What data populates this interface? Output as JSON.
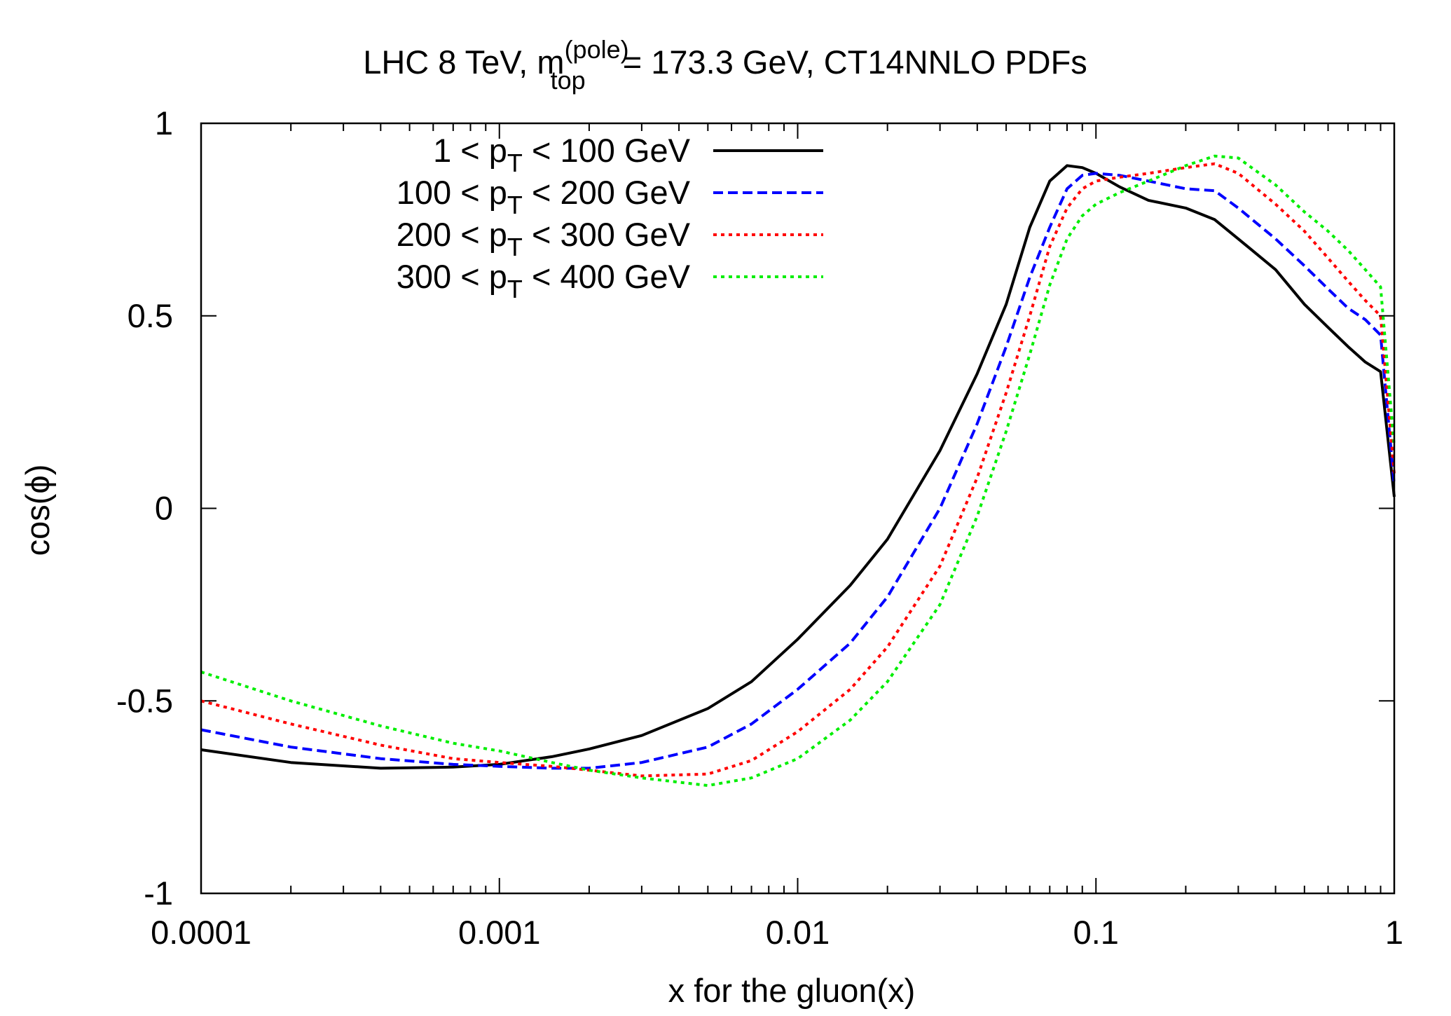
{
  "chart_data": {
    "type": "line",
    "title": {
      "prefix": "LHC 8 TeV, m",
      "superscript": "(pole)",
      "subscript": "top",
      "suffix": " = 173.3 GeV, CT14NNLO PDFs"
    },
    "xlabel": "x for the gluon(x)",
    "ylabel": "cos(ϕ)",
    "xscale": "log",
    "xlim": [
      0.0001,
      1
    ],
    "ylim": [
      -1,
      1
    ],
    "xticks": [
      {
        "value": 0.0001,
        "label": "0.0001"
      },
      {
        "value": 0.001,
        "label": "0.001"
      },
      {
        "value": 0.01,
        "label": "0.01"
      },
      {
        "value": 0.1,
        "label": "0.1"
      },
      {
        "value": 1,
        "label": "1"
      }
    ],
    "yticks": [
      {
        "value": 1,
        "label": "1"
      },
      {
        "value": 0.5,
        "label": "0.5"
      },
      {
        "value": 0,
        "label": "0"
      },
      {
        "value": -0.5,
        "label": "-0.5"
      },
      {
        "value": -1,
        "label": "-1"
      }
    ],
    "grid": false,
    "legend_position": "top-left",
    "series": [
      {
        "name": "1 < pT < 100 GeV",
        "legend": {
          "pre": "1 < p",
          "sub": "T",
          "post": " < 100 GeV"
        },
        "color": "#000000",
        "dash": "solid",
        "points": [
          [
            0.0001,
            -0.627
          ],
          [
            0.0002,
            -0.66
          ],
          [
            0.0004,
            -0.675
          ],
          [
            0.0007,
            -0.672
          ],
          [
            0.001,
            -0.665
          ],
          [
            0.0015,
            -0.645
          ],
          [
            0.002,
            -0.625
          ],
          [
            0.003,
            -0.59
          ],
          [
            0.005,
            -0.52
          ],
          [
            0.007,
            -0.45
          ],
          [
            0.01,
            -0.34
          ],
          [
            0.015,
            -0.2
          ],
          [
            0.02,
            -0.08
          ],
          [
            0.03,
            0.15
          ],
          [
            0.04,
            0.35
          ],
          [
            0.05,
            0.53
          ],
          [
            0.06,
            0.73
          ],
          [
            0.07,
            0.85
          ],
          [
            0.08,
            0.89
          ],
          [
            0.09,
            0.885
          ],
          [
            0.1,
            0.87
          ],
          [
            0.12,
            0.835
          ],
          [
            0.15,
            0.8
          ],
          [
            0.2,
            0.78
          ],
          [
            0.25,
            0.75
          ],
          [
            0.3,
            0.7
          ],
          [
            0.4,
            0.62
          ],
          [
            0.5,
            0.53
          ],
          [
            0.6,
            0.47
          ],
          [
            0.7,
            0.42
          ],
          [
            0.8,
            0.38
          ],
          [
            0.9,
            0.355
          ],
          [
            1.0,
            0.03
          ]
        ]
      },
      {
        "name": "100 < pT < 200 GeV",
        "legend": {
          "pre": "100 < p",
          "sub": "T",
          "post": " < 200 GeV"
        },
        "color": "#0000ff",
        "dash": "dashed",
        "points": [
          [
            0.0001,
            -0.575
          ],
          [
            0.0002,
            -0.62
          ],
          [
            0.0004,
            -0.65
          ],
          [
            0.0007,
            -0.665
          ],
          [
            0.001,
            -0.67
          ],
          [
            0.0015,
            -0.675
          ],
          [
            0.002,
            -0.675
          ],
          [
            0.003,
            -0.66
          ],
          [
            0.005,
            -0.62
          ],
          [
            0.007,
            -0.56
          ],
          [
            0.01,
            -0.47
          ],
          [
            0.015,
            -0.35
          ],
          [
            0.02,
            -0.23
          ],
          [
            0.03,
            0.0
          ],
          [
            0.04,
            0.22
          ],
          [
            0.05,
            0.42
          ],
          [
            0.06,
            0.6
          ],
          [
            0.07,
            0.73
          ],
          [
            0.08,
            0.83
          ],
          [
            0.09,
            0.865
          ],
          [
            0.1,
            0.87
          ],
          [
            0.12,
            0.865
          ],
          [
            0.15,
            0.85
          ],
          [
            0.2,
            0.83
          ],
          [
            0.25,
            0.825
          ],
          [
            0.3,
            0.78
          ],
          [
            0.4,
            0.7
          ],
          [
            0.5,
            0.63
          ],
          [
            0.6,
            0.57
          ],
          [
            0.7,
            0.52
          ],
          [
            0.8,
            0.49
          ],
          [
            0.9,
            0.45
          ],
          [
            1.0,
            0.06
          ]
        ]
      },
      {
        "name": "200 < pT < 300 GeV",
        "legend": {
          "pre": "200 < p",
          "sub": "T",
          "post": " < 300 GeV"
        },
        "color": "#ff0000",
        "dash": "dotted",
        "points": [
          [
            0.0001,
            -0.5
          ],
          [
            0.0002,
            -0.56
          ],
          [
            0.0004,
            -0.615
          ],
          [
            0.0007,
            -0.65
          ],
          [
            0.001,
            -0.66
          ],
          [
            0.0015,
            -0.67
          ],
          [
            0.002,
            -0.68
          ],
          [
            0.003,
            -0.695
          ],
          [
            0.005,
            -0.69
          ],
          [
            0.007,
            -0.655
          ],
          [
            0.01,
            -0.58
          ],
          [
            0.015,
            -0.47
          ],
          [
            0.02,
            -0.36
          ],
          [
            0.03,
            -0.15
          ],
          [
            0.04,
            0.08
          ],
          [
            0.05,
            0.3
          ],
          [
            0.06,
            0.5
          ],
          [
            0.07,
            0.68
          ],
          [
            0.08,
            0.78
          ],
          [
            0.09,
            0.83
          ],
          [
            0.1,
            0.85
          ],
          [
            0.12,
            0.86
          ],
          [
            0.15,
            0.87
          ],
          [
            0.2,
            0.885
          ],
          [
            0.25,
            0.895
          ],
          [
            0.3,
            0.87
          ],
          [
            0.4,
            0.79
          ],
          [
            0.5,
            0.72
          ],
          [
            0.6,
            0.65
          ],
          [
            0.7,
            0.59
          ],
          [
            0.8,
            0.54
          ],
          [
            0.9,
            0.5
          ],
          [
            1.0,
            0.09
          ]
        ]
      },
      {
        "name": "300 < pT < 400 GeV",
        "legend": {
          "pre": "300 < p",
          "sub": "T",
          "post": " < 400 GeV"
        },
        "color": "#00ee00",
        "dash": "dotted",
        "points": [
          [
            0.0001,
            -0.425
          ],
          [
            0.0002,
            -0.5
          ],
          [
            0.0004,
            -0.565
          ],
          [
            0.0007,
            -0.61
          ],
          [
            0.001,
            -0.63
          ],
          [
            0.0015,
            -0.66
          ],
          [
            0.002,
            -0.68
          ],
          [
            0.003,
            -0.7
          ],
          [
            0.005,
            -0.72
          ],
          [
            0.007,
            -0.7
          ],
          [
            0.01,
            -0.65
          ],
          [
            0.015,
            -0.55
          ],
          [
            0.02,
            -0.45
          ],
          [
            0.03,
            -0.25
          ],
          [
            0.04,
            -0.02
          ],
          [
            0.05,
            0.2
          ],
          [
            0.06,
            0.4
          ],
          [
            0.07,
            0.58
          ],
          [
            0.08,
            0.7
          ],
          [
            0.09,
            0.76
          ],
          [
            0.1,
            0.79
          ],
          [
            0.12,
            0.82
          ],
          [
            0.15,
            0.85
          ],
          [
            0.2,
            0.89
          ],
          [
            0.25,
            0.915
          ],
          [
            0.3,
            0.91
          ],
          [
            0.4,
            0.84
          ],
          [
            0.5,
            0.77
          ],
          [
            0.6,
            0.72
          ],
          [
            0.7,
            0.67
          ],
          [
            0.8,
            0.62
          ],
          [
            0.9,
            0.575
          ],
          [
            1.0,
            0.16
          ]
        ]
      }
    ]
  }
}
